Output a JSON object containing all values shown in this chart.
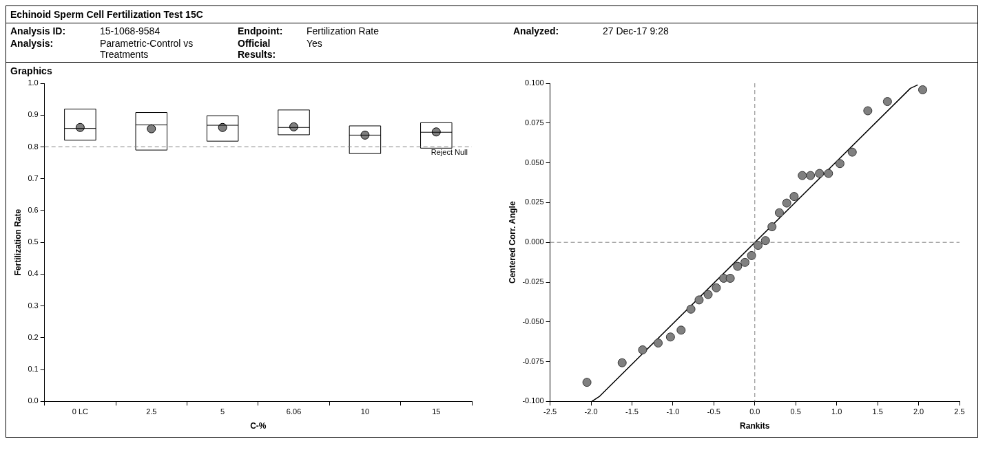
{
  "chart_data": [
    {
      "type": "box",
      "title": "Echinoid Sperm Cell Fertilization Test 15C",
      "subtitle": "Graphics",
      "annotations": [
        "Analysis ID:",
        "15-1068-9584",
        "Endpoint:",
        "Fertilization Rate",
        "Analyzed:",
        "27 Dec-17 9:28",
        "Analysis:",
        "Parametric-Control vs Treatments",
        "Official Results:",
        "Yes"
      ],
      "categories": [
        "0 LC",
        "2.5",
        "5",
        "6.06",
        "10",
        "15"
      ],
      "boxes": [
        {
          "low": 0.821,
          "q1": 0.821,
          "median": 0.858,
          "q3": 0.919,
          "high": 0.919,
          "mean": 0.861
        },
        {
          "low": 0.79,
          "q1": 0.79,
          "median": 0.869,
          "q3": 0.908,
          "high": 0.908,
          "mean": 0.857
        },
        {
          "low": 0.818,
          "q1": 0.818,
          "median": 0.868,
          "q3": 0.898,
          "high": 0.898,
          "mean": 0.861
        },
        {
          "low": 0.838,
          "q1": 0.838,
          "median": 0.861,
          "q3": 0.916,
          "high": 0.916,
          "mean": 0.863
        },
        {
          "low": 0.779,
          "q1": 0.779,
          "median": 0.837,
          "q3": 0.866,
          "high": 0.866,
          "mean": 0.837
        },
        {
          "low": 0.796,
          "q1": 0.796,
          "median": 0.846,
          "q3": 0.876,
          "high": 0.876,
          "mean": 0.847
        }
      ],
      "color": "#000000",
      "marker": "circle",
      "xlabel": "C-%",
      "ylabel": "Fertilization Rate",
      "ylim": [
        0,
        1
      ],
      "yticks": [
        {
          "value": 0,
          "label": "0.0"
        },
        {
          "value": 0.1,
          "label": "0.1"
        },
        {
          "value": 0.2,
          "label": "0.2"
        },
        {
          "value": 0.3,
          "label": "0.3"
        },
        {
          "value": 0.4,
          "label": "0.4"
        },
        {
          "value": 0.5,
          "label": "0.5"
        },
        {
          "value": 0.6,
          "label": "0.6"
        },
        {
          "value": 0.7,
          "label": "0.7"
        },
        {
          "value": 0.8,
          "label": "0.8"
        },
        {
          "value": 0.9,
          "label": "0.9"
        },
        {
          "value": 1,
          "label": "1.0"
        }
      ],
      "ref_lines": [
        {
          "axis": "y",
          "value": 0.8,
          "label": "Reject Null",
          "line_style": "dashed",
          "color": "#808080"
        }
      ],
      "grid": false,
      "legend": false
    },
    {
      "type": "scatter",
      "xlabel": "Rankits",
      "ylabel": "Centered Corr. Angle",
      "series": [
        {
          "type": "scatter",
          "color": "#808080",
          "marker": "circle",
          "x": [
            -2.05,
            -1.62,
            -1.37,
            -1.18,
            -1.03,
            -0.9,
            -0.78,
            -0.68,
            -0.57,
            -0.47,
            -0.38,
            -0.3,
            -0.21,
            -0.12,
            -0.04,
            0.04,
            0.13,
            0.21,
            0.3,
            0.39,
            0.48,
            0.58,
            0.68,
            0.79,
            0.9,
            1.04,
            1.19,
            1.38,
            1.62,
            2.05
          ],
          "values": [
            -0.088,
            -0.0757,
            -0.0676,
            -0.0633,
            -0.0595,
            -0.0552,
            -0.042,
            -0.0362,
            -0.0328,
            -0.0286,
            -0.0226,
            -0.0226,
            -0.0151,
            -0.0126,
            -0.0083,
            -0.0019,
            0.0011,
            0.0098,
            0.0186,
            0.0247,
            0.0288,
            0.042,
            0.042,
            0.0433,
            0.0433,
            0.0495,
            0.0567,
            0.0827,
            0.0885,
            0.0959
          ]
        },
        {
          "type": "line",
          "color": "#000000",
          "x": [
            -1.99,
            -1.9,
            1.9,
            1.99
          ],
          "values": [
            -0.1,
            -0.097,
            0.0968,
            0.099
          ]
        }
      ],
      "xlim": [
        -2.5,
        2.5
      ],
      "xticks": [
        -2.5,
        {
          "value": -2,
          "label": "-2.0"
        },
        -1.5,
        {
          "value": -1,
          "label": "-1.0"
        },
        -0.5,
        {
          "value": 0,
          "label": "0.0"
        },
        0.5,
        {
          "value": 1,
          "label": "1.0"
        },
        1.5,
        {
          "value": 2,
          "label": "2.0"
        },
        2.5
      ],
      "ylim": [
        -0.1,
        0.1
      ],
      "yticks": [
        {
          "value": -0.1,
          "label": "-0.100"
        },
        {
          "value": -0.075,
          "label": "-0.075"
        },
        {
          "value": -0.05,
          "label": "-0.050"
        },
        {
          "value": -0.025,
          "label": "-0.025"
        },
        {
          "value": 0,
          "label": "0.000"
        },
        {
          "value": 0.025,
          "label": "0.025"
        },
        {
          "value": 0.05,
          "label": "0.050"
        },
        {
          "value": 0.075,
          "label": "0.075"
        },
        {
          "value": 0.1,
          "label": "0.100"
        }
      ],
      "ref_lines": [
        {
          "axis": "x",
          "value": 0,
          "line_style": "dashed",
          "color": "#808080"
        },
        {
          "axis": "y",
          "value": 0,
          "line_style": "dashed",
          "color": "#808080"
        }
      ],
      "grid": false,
      "legend": false
    }
  ]
}
